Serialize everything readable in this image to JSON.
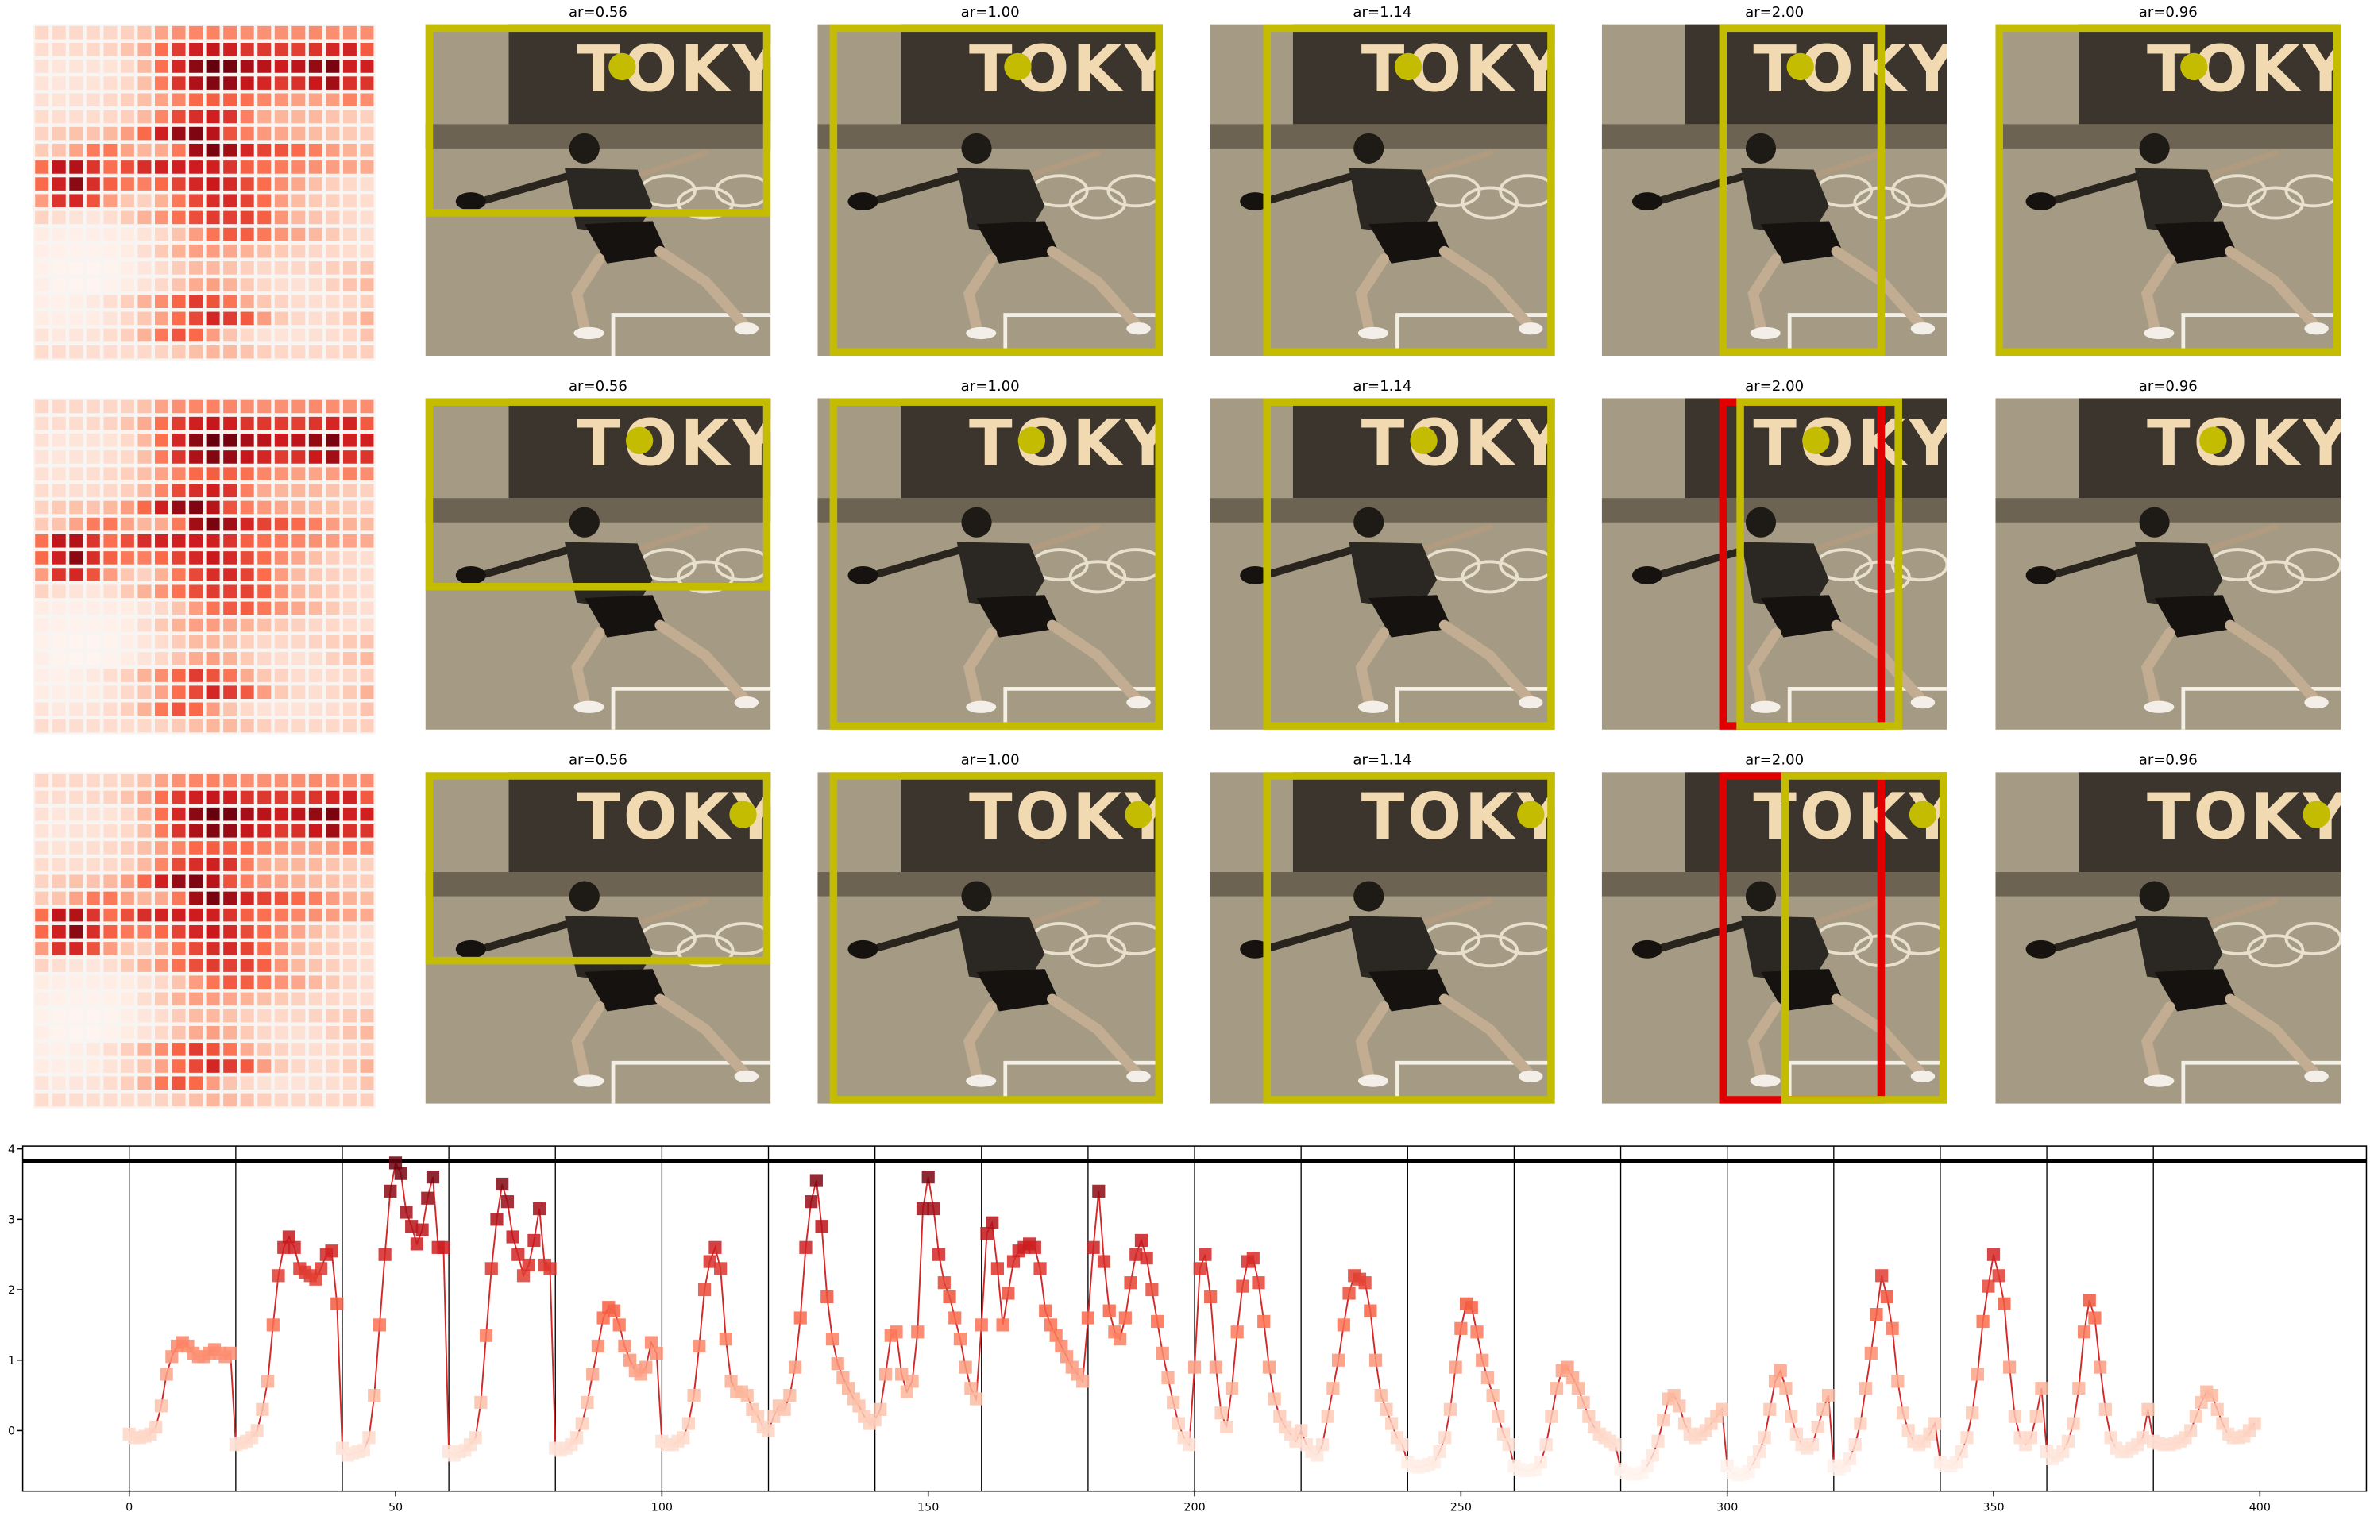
{
  "panels": {
    "titles": [
      "ar=0.56",
      "ar=1.00",
      "ar=1.14",
      "ar=2.00",
      "ar=0.96"
    ],
    "photo_text": "TOKYO"
  },
  "chart_data": {
    "type": "line",
    "colormap": "Reds",
    "x": [
      0,
      1,
      2,
      3,
      4,
      5,
      6,
      7,
      8,
      9,
      10,
      11,
      12,
      13,
      14,
      15,
      16,
      17,
      18,
      19,
      20,
      21,
      22,
      23,
      24,
      25,
      26,
      27,
      28,
      29,
      30,
      31,
      32,
      33,
      34,
      35,
      36,
      37,
      38,
      39,
      40,
      41,
      42,
      43,
      44,
      45,
      46,
      47,
      48,
      49,
      50,
      51,
      52,
      53,
      54,
      55,
      56,
      57,
      58,
      59,
      60,
      61,
      62,
      63,
      64,
      65,
      66,
      67,
      68,
      69,
      70,
      71,
      72,
      73,
      74,
      75,
      76,
      77,
      78,
      79,
      80,
      81,
      82,
      83,
      84,
      85,
      86,
      87,
      88,
      89,
      90,
      91,
      92,
      93,
      94,
      95,
      96,
      97,
      98,
      99,
      100,
      101,
      102,
      103,
      104,
      105,
      106,
      107,
      108,
      109,
      110,
      111,
      112,
      113,
      114,
      115,
      116,
      117,
      118,
      119,
      120,
      121,
      122,
      123,
      124,
      125,
      126,
      127,
      128,
      129,
      130,
      131,
      132,
      133,
      134,
      135,
      136,
      137,
      138,
      139,
      140,
      141,
      142,
      143,
      144,
      145,
      146,
      147,
      148,
      149,
      150,
      151,
      152,
      153,
      154,
      155,
      156,
      157,
      158,
      159,
      160,
      161,
      162,
      163,
      164,
      165,
      166,
      167,
      168,
      169,
      170,
      171,
      172,
      173,
      174,
      175,
      176,
      177,
      178,
      179,
      180,
      181,
      182,
      183,
      184,
      185,
      186,
      187,
      188,
      189,
      190,
      191,
      192,
      193,
      194,
      195,
      196,
      197,
      198,
      199,
      200,
      201,
      202,
      203,
      204,
      205,
      206,
      207,
      208,
      209,
      210,
      211,
      212,
      213,
      214,
      215,
      216,
      217,
      218,
      219,
      220,
      221,
      222,
      223,
      224,
      225,
      226,
      227,
      228,
      229,
      230,
      231,
      232,
      233,
      234,
      235,
      236,
      237,
      238,
      239,
      240,
      241,
      242,
      243,
      244,
      245,
      246,
      247,
      248,
      249,
      250,
      251,
      252,
      253,
      254,
      255,
      256,
      257,
      258,
      259,
      260,
      261,
      262,
      263,
      264,
      265,
      266,
      267,
      268,
      269,
      270,
      271,
      272,
      273,
      274,
      275,
      276,
      277,
      278,
      279,
      280,
      281,
      282,
      283,
      284,
      285,
      286,
      287,
      288,
      289,
      290,
      291,
      292,
      293,
      294,
      295,
      296,
      297,
      298,
      299,
      300,
      301,
      302,
      303,
      304,
      305,
      306,
      307,
      308,
      309,
      310,
      311,
      312,
      313,
      314,
      315,
      316,
      317,
      318,
      319,
      320,
      321,
      322,
      323,
      324,
      325,
      326,
      327,
      328,
      329,
      330,
      331,
      332,
      333,
      334,
      335,
      336,
      337,
      338,
      339,
      340,
      341,
      342,
      343,
      344,
      345,
      346,
      347,
      348,
      349,
      350,
      351,
      352,
      353,
      354,
      355,
      356,
      357,
      358,
      359,
      360,
      361,
      362,
      363,
      364,
      365,
      366,
      367,
      368,
      369,
      370,
      371,
      372,
      373,
      374,
      375,
      376,
      377,
      378,
      379,
      380,
      381,
      382,
      383,
      384,
      385,
      386,
      387,
      388,
      389,
      390,
      391,
      392,
      393,
      394,
      395,
      396,
      397,
      398,
      399
    ],
    "series": [
      {
        "color": "#d62728",
        "marker": "square",
        "values": [
          -0.05,
          -0.1,
          -0.1,
          -0.08,
          -0.05,
          0.05,
          0.35,
          0.8,
          1.05,
          1.2,
          1.25,
          1.2,
          1.1,
          1.05,
          1.05,
          1.1,
          1.15,
          1.1,
          1.05,
          1.1,
          -0.2,
          -0.18,
          -0.15,
          -0.1,
          0.0,
          0.3,
          0.7,
          1.5,
          2.2,
          2.6,
          2.75,
          2.6,
          2.3,
          2.25,
          2.2,
          2.15,
          2.3,
          2.5,
          2.55,
          1.8,
          -0.25,
          -0.35,
          -0.32,
          -0.3,
          -0.28,
          -0.1,
          0.5,
          1.5,
          2.5,
          3.4,
          3.8,
          3.65,
          3.1,
          2.9,
          2.65,
          2.85,
          3.3,
          3.6,
          2.6,
          2.6,
          -0.3,
          -0.35,
          -0.3,
          -0.28,
          -0.2,
          -0.1,
          0.4,
          1.35,
          2.3,
          3.0,
          3.5,
          3.25,
          2.75,
          2.5,
          2.2,
          2.35,
          2.7,
          3.15,
          2.35,
          2.3,
          -0.25,
          -0.28,
          -0.25,
          -0.2,
          -0.1,
          0.1,
          0.4,
          0.8,
          1.2,
          1.6,
          1.75,
          1.7,
          1.5,
          1.2,
          1.0,
          0.85,
          0.8,
          0.9,
          1.25,
          1.1,
          -0.15,
          -0.2,
          -0.2,
          -0.15,
          -0.1,
          0.1,
          0.5,
          1.2,
          2.0,
          2.4,
          2.6,
          2.3,
          1.3,
          0.7,
          0.55,
          0.55,
          0.5,
          0.3,
          0.2,
          0.05,
          0.0,
          0.2,
          0.35,
          0.3,
          0.5,
          0.9,
          1.6,
          2.6,
          3.25,
          3.55,
          2.9,
          1.9,
          1.3,
          0.95,
          0.75,
          0.6,
          0.45,
          0.35,
          0.2,
          0.1,
          0.15,
          0.3,
          0.8,
          1.35,
          1.4,
          0.8,
          0.55,
          0.7,
          1.4,
          3.15,
          3.6,
          3.15,
          2.5,
          2.1,
          1.9,
          1.6,
          1.3,
          0.9,
          0.6,
          0.45,
          1.5,
          2.8,
          2.95,
          2.3,
          1.5,
          1.95,
          2.4,
          2.55,
          2.6,
          2.65,
          2.6,
          2.3,
          1.7,
          1.5,
          1.35,
          1.2,
          1.05,
          0.9,
          0.8,
          0.7,
          1.6,
          2.6,
          3.4,
          2.4,
          1.7,
          1.4,
          1.3,
          1.6,
          2.1,
          2.5,
          2.7,
          2.45,
          2.0,
          1.55,
          1.1,
          0.75,
          0.4,
          0.1,
          -0.1,
          -0.2,
          0.9,
          2.3,
          2.5,
          1.9,
          0.9,
          0.25,
          0.05,
          0.6,
          1.4,
          2.05,
          2.4,
          2.45,
          2.1,
          1.55,
          0.9,
          0.45,
          0.2,
          0.05,
          -0.05,
          -0.15,
          0.0,
          -0.2,
          -0.3,
          -0.35,
          -0.2,
          0.2,
          0.6,
          1.0,
          1.5,
          1.95,
          2.2,
          2.15,
          2.1,
          1.7,
          1.0,
          0.5,
          0.3,
          0.1,
          -0.1,
          -0.2,
          -0.45,
          -0.5,
          -0.52,
          -0.5,
          -0.48,
          -0.45,
          -0.3,
          -0.1,
          0.3,
          0.9,
          1.45,
          1.8,
          1.75,
          1.4,
          1.0,
          0.75,
          0.5,
          0.2,
          -0.05,
          -0.2,
          -0.5,
          -0.55,
          -0.57,
          -0.57,
          -0.55,
          -0.45,
          -0.2,
          0.2,
          0.6,
          0.85,
          0.9,
          0.75,
          0.6,
          0.4,
          0.2,
          0.05,
          -0.05,
          -0.1,
          -0.15,
          -0.2,
          -0.55,
          -0.6,
          -0.62,
          -0.62,
          -0.6,
          -0.5,
          -0.35,
          -0.15,
          0.15,
          0.45,
          0.5,
          0.35,
          0.1,
          -0.05,
          -0.1,
          -0.05,
          0.0,
          0.1,
          0.2,
          0.3,
          -0.5,
          -0.6,
          -0.63,
          -0.62,
          -0.58,
          -0.45,
          -0.3,
          -0.1,
          0.3,
          0.7,
          0.85,
          0.6,
          0.2,
          -0.05,
          -0.2,
          -0.25,
          -0.2,
          0.05,
          0.3,
          0.5,
          -0.5,
          -0.55,
          -0.5,
          -0.4,
          -0.2,
          0.1,
          0.6,
          1.1,
          1.65,
          2.2,
          1.9,
          1.45,
          0.7,
          0.25,
          0.0,
          -0.15,
          -0.2,
          -0.15,
          -0.05,
          0.1,
          -0.45,
          -0.5,
          -0.5,
          -0.45,
          -0.3,
          -0.1,
          0.25,
          0.8,
          1.55,
          2.05,
          2.5,
          2.2,
          1.8,
          0.9,
          0.2,
          -0.1,
          -0.2,
          -0.1,
          0.2,
          0.6,
          -0.3,
          -0.4,
          -0.35,
          -0.3,
          -0.15,
          0.1,
          0.6,
          1.4,
          1.85,
          1.6,
          0.9,
          0.3,
          -0.1,
          -0.25,
          -0.3,
          -0.3,
          -0.25,
          -0.2,
          -0.1,
          0.3,
          -0.15,
          -0.18,
          -0.2,
          -0.2,
          -0.18,
          -0.15,
          -0.1,
          0.0,
          0.2,
          0.4,
          0.55,
          0.5,
          0.3,
          0.1,
          -0.05,
          -0.1,
          -0.1,
          -0.08,
          0.0,
          0.1
        ]
      }
    ],
    "xlim": [
      -20,
      420
    ],
    "ylim": [
      -0.86,
      4.04
    ],
    "xticks": [
      0,
      50,
      100,
      150,
      200,
      250,
      300,
      350,
      400
    ],
    "yticks": [
      0,
      1,
      2,
      3,
      4
    ],
    "vlines": [
      0,
      20,
      40,
      60,
      80,
      100,
      120,
      140,
      160,
      180,
      200,
      220,
      240,
      260,
      280,
      300,
      320,
      340,
      360,
      380
    ],
    "hline": 3.83
  }
}
